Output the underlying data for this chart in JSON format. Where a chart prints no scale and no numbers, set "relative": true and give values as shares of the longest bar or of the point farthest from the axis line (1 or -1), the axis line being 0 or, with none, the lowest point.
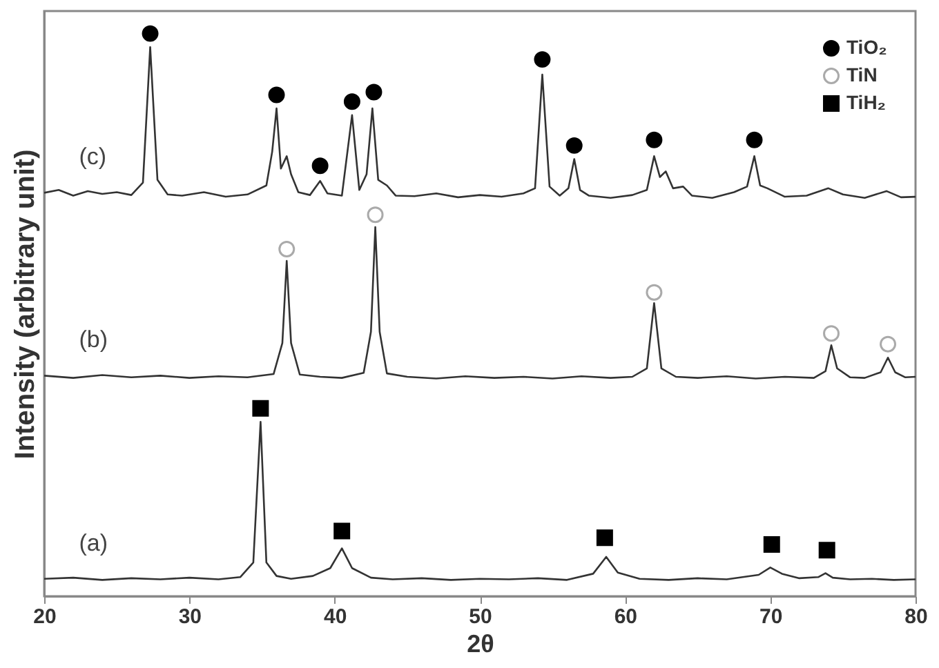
{
  "chart_data": {
    "type": "line",
    "relative": true,
    "xlabel": "2θ",
    "ylabel": "Intensity (arbitrary unit)",
    "xlim": [
      20,
      80
    ],
    "xticks": [
      20,
      30,
      40,
      50,
      60,
      70,
      80
    ],
    "grid": false,
    "legend": "top right",
    "line_style": "solid",
    "series": [
      {
        "name": "(c)",
        "color": "#333333",
        "x": [
          20,
          21,
          22,
          23,
          24,
          25,
          26,
          26.8,
          27.3,
          27.8,
          28.5,
          29.5,
          31,
          32.5,
          34,
          35.3,
          35.7,
          36.0,
          36.3,
          36.7,
          37.0,
          37.5,
          38.3,
          39.0,
          39.5,
          40.5,
          41.2,
          41.7,
          42.2,
          42.6,
          43.0,
          43.6,
          44.2,
          45.5,
          47,
          48.5,
          50,
          51.5,
          53,
          53.8,
          54.3,
          54.8,
          55.5,
          56.1,
          56.5,
          56.9,
          57.5,
          59,
          60.5,
          61.5,
          62.0,
          62.4,
          62.8,
          63.3,
          64.0,
          64.6,
          66,
          67.5,
          68.4,
          68.9,
          69.3,
          69.8,
          71,
          72.5,
          74,
          75,
          76.5,
          78,
          79,
          80
        ],
        "values": [
          0.717,
          0.722,
          0.712,
          0.72,
          0.715,
          0.718,
          0.713,
          0.735,
          0.976,
          0.74,
          0.714,
          0.712,
          0.718,
          0.71,
          0.714,
          0.73,
          0.79,
          0.867,
          0.76,
          0.782,
          0.75,
          0.718,
          0.713,
          0.738,
          0.716,
          0.712,
          0.855,
          0.722,
          0.75,
          0.867,
          0.74,
          0.73,
          0.712,
          0.711,
          0.716,
          0.709,
          0.713,
          0.71,
          0.716,
          0.725,
          0.927,
          0.728,
          0.712,
          0.725,
          0.777,
          0.722,
          0.712,
          0.708,
          0.713,
          0.722,
          0.782,
          0.745,
          0.755,
          0.725,
          0.728,
          0.712,
          0.708,
          0.718,
          0.728,
          0.782,
          0.73,
          0.725,
          0.71,
          0.712,
          0.725,
          0.714,
          0.708,
          0.72,
          0.709,
          0.71
        ]
      },
      {
        "name": "(b)",
        "color": "#333333",
        "x": [
          20,
          22,
          24,
          26,
          28,
          30,
          32,
          34,
          35.8,
          36.4,
          36.7,
          37.0,
          37.6,
          39,
          40.5,
          42.0,
          42.5,
          42.8,
          43.1,
          43.6,
          45,
          47,
          49,
          51,
          53,
          55,
          57,
          59,
          60.5,
          61.5,
          62.0,
          62.5,
          63.5,
          65,
          67,
          69,
          71,
          73,
          73.8,
          74.2,
          74.6,
          75.5,
          76.5,
          77.6,
          78.1,
          78.6,
          79.3,
          80
        ],
        "values": [
          0.392,
          0.388,
          0.393,
          0.389,
          0.392,
          0.388,
          0.391,
          0.389,
          0.395,
          0.45,
          0.596,
          0.45,
          0.394,
          0.39,
          0.388,
          0.397,
          0.47,
          0.656,
          0.47,
          0.396,
          0.39,
          0.387,
          0.391,
          0.388,
          0.39,
          0.387,
          0.391,
          0.388,
          0.39,
          0.405,
          0.521,
          0.405,
          0.39,
          0.388,
          0.391,
          0.387,
          0.39,
          0.388,
          0.4,
          0.446,
          0.405,
          0.389,
          0.388,
          0.398,
          0.424,
          0.398,
          0.389,
          0.39
        ]
      },
      {
        "name": "(a)",
        "color": "#333333",
        "x": [
          20,
          22,
          24,
          26,
          28,
          30,
          32,
          33.5,
          34.4,
          34.9,
          35.3,
          36,
          37,
          38.5,
          39.7,
          40.5,
          41.2,
          42.5,
          44,
          46,
          48,
          50,
          52,
          54,
          56,
          57.8,
          58.7,
          59.5,
          61,
          63,
          65,
          67,
          69.2,
          70.0,
          70.8,
          72,
          73.3,
          73.8,
          74.3,
          75.5,
          77,
          78.5,
          80
        ],
        "values": [
          0.031,
          0.033,
          0.029,
          0.032,
          0.03,
          0.033,
          0.03,
          0.034,
          0.06,
          0.31,
          0.06,
          0.036,
          0.031,
          0.036,
          0.05,
          0.085,
          0.05,
          0.033,
          0.03,
          0.032,
          0.029,
          0.031,
          0.03,
          0.032,
          0.029,
          0.04,
          0.07,
          0.042,
          0.031,
          0.029,
          0.032,
          0.03,
          0.038,
          0.051,
          0.04,
          0.032,
          0.034,
          0.041,
          0.033,
          0.03,
          0.031,
          0.029,
          0.03
        ]
      },
      {
        "name": "TiO₂",
        "type": "scatter",
        "marker": "circle",
        "color": "#000000",
        "x": [
          27.3,
          36.0,
          39.0,
          41.2,
          42.7,
          54.3,
          56.5,
          62.0,
          68.9
        ],
        "values": [
          1.0,
          0.891,
          0.765,
          0.879,
          0.896,
          0.954,
          0.801,
          0.811,
          0.811
        ]
      },
      {
        "name": "TiN",
        "type": "scatter",
        "marker": "circle open",
        "color": "#aaaaaa",
        "x": [
          36.7,
          42.8,
          62.0,
          74.2,
          78.1
        ],
        "values": [
          0.617,
          0.678,
          0.54,
          0.467,
          0.448
        ]
      },
      {
        "name": "TiH₂",
        "type": "scatter",
        "marker": "square",
        "color": "#000000",
        "x": [
          34.9,
          40.5,
          58.6,
          70.1,
          73.9
        ],
        "values": [
          0.334,
          0.116,
          0.104,
          0.092,
          0.082
        ]
      }
    ]
  }
}
